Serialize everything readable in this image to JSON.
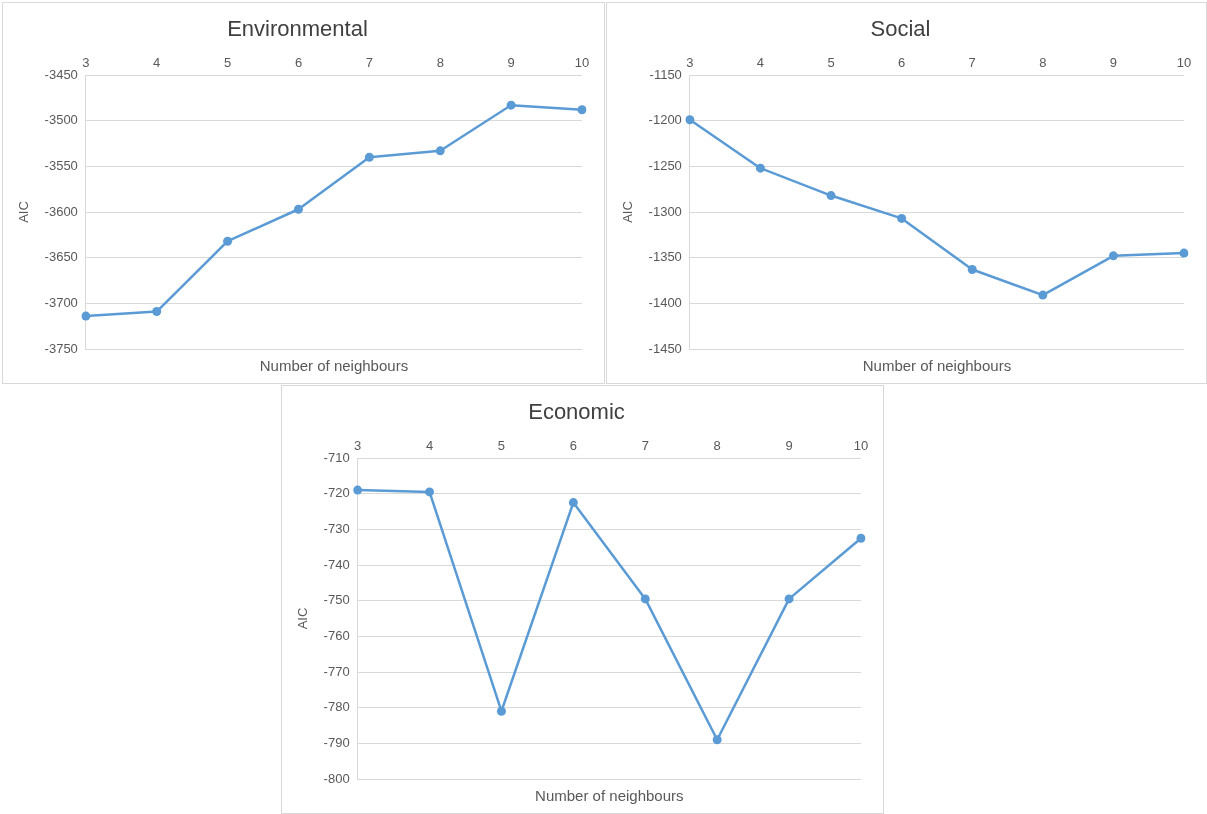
{
  "chart_data": [
    {
      "type": "line",
      "title": "Environmental",
      "xlabel": "Number of neighbours",
      "ylabel": "AIC",
      "categories": [
        "3",
        "4",
        "5",
        "6",
        "7",
        "8",
        "9",
        "10"
      ],
      "series": [
        {
          "color": "#5b9bd5",
          "values": [
            -3714,
            -3709,
            -3632,
            -3597,
            -3540,
            -3533,
            -3483,
            -3488
          ]
        }
      ],
      "ylim": [
        -3750,
        -3450
      ],
      "yticks": [
        -3750,
        -3700,
        -3650,
        -3600,
        -3550,
        -3500,
        -3450
      ],
      "grid": "y",
      "marker": "circle",
      "line_style": "solid"
    },
    {
      "type": "line",
      "title": "Social",
      "xlabel": "Number of neighbours",
      "ylabel": "AIC",
      "categories": [
        "3",
        "4",
        "5",
        "6",
        "7",
        "8",
        "9",
        "10"
      ],
      "series": [
        {
          "color": "#5b9bd5",
          "values": [
            -1199,
            -1252,
            -1282,
            -1307,
            -1363,
            -1391,
            -1348,
            -1345
          ]
        }
      ],
      "ylim": [
        -1450,
        -1150
      ],
      "yticks": [
        -1450,
        -1400,
        -1350,
        -1300,
        -1250,
        -1200,
        -1150
      ],
      "grid": "y",
      "marker": "circle",
      "line_style": "solid"
    },
    {
      "type": "line",
      "title": "Economic",
      "xlabel": "Number of neighbours",
      "ylabel": "AIC",
      "categories": [
        "3",
        "4",
        "5",
        "6",
        "7",
        "8",
        "9",
        "10"
      ],
      "series": [
        {
          "color": "#5b9bd5",
          "values": [
            -719,
            -719.5,
            -781,
            -722.5,
            -749.5,
            -789,
            -749.5,
            -732.5
          ]
        }
      ],
      "ylim": [
        -800,
        -710
      ],
      "yticks": [
        -800,
        -790,
        -780,
        -770,
        -760,
        -750,
        -740,
        -730,
        -720,
        -710
      ],
      "grid": "y",
      "marker": "circle",
      "line_style": "solid"
    }
  ]
}
